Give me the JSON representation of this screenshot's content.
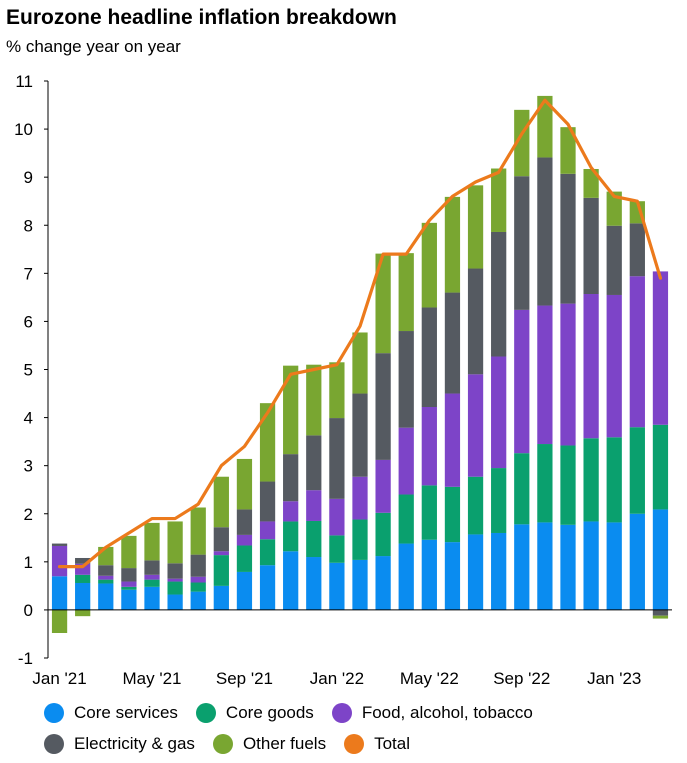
{
  "title": "Eurozone headline inflation breakdown",
  "subtitle": "% change year on year",
  "chart_data": {
    "type": "bar",
    "stacked": true,
    "title": "Eurozone headline inflation breakdown",
    "ylabel": "% change year on year",
    "ylim": [
      -1,
      11
    ],
    "yticks": [
      -1,
      0,
      1,
      2,
      3,
      4,
      5,
      6,
      7,
      8,
      9,
      10,
      11
    ],
    "x_tick_labels": [
      "Jan '21",
      "May '21",
      "Sep '21",
      "Jan '22",
      "May '22",
      "Sep '22",
      "Jan '23"
    ],
    "x_tick_index": [
      0,
      4,
      8,
      12,
      16,
      20,
      24
    ],
    "categories": [
      "Jan 2021",
      "Feb 2021",
      "Mar 2021",
      "Apr 2021",
      "May 2021",
      "Jun 2021",
      "Jul 2021",
      "Aug 2021",
      "Sep 2021",
      "Oct 2021",
      "Nov 2021",
      "Dec 2021",
      "Jan 2022",
      "Feb 2022",
      "Mar 2022",
      "Apr 2022",
      "May 2022",
      "Jun 2022",
      "Jul 2022",
      "Aug 2022",
      "Sep 2022",
      "Oct 2022",
      "Nov 2022",
      "Dec 2022",
      "Jan 2023",
      "Feb 2023",
      "Mar 2023"
    ],
    "series": [
      {
        "name": "Core services",
        "color": "#0a8cf0",
        "values": [
          0.7,
          0.56,
          0.55,
          0.42,
          0.48,
          0.32,
          0.38,
          0.5,
          0.79,
          0.93,
          1.22,
          1.1,
          0.98,
          1.04,
          1.12,
          1.38,
          1.46,
          1.41,
          1.57,
          1.6,
          1.78,
          1.82,
          1.77,
          1.84,
          1.82,
          2.0,
          2.09
        ]
      },
      {
        "name": "Core goods",
        "color": "#0aa06e",
        "values": [
          0,
          0.17,
          0.08,
          0.06,
          0.15,
          0.27,
          0.19,
          0.64,
          0.55,
          0.54,
          0.62,
          0.75,
          0.57,
          0.84,
          0.9,
          1.02,
          1.13,
          1.15,
          1.2,
          1.35,
          1.48,
          1.63,
          1.65,
          1.73,
          1.77,
          1.8,
          1.76
        ]
      },
      {
        "name": "Food, alcohol, tobacco",
        "color": "#7d44c8",
        "values": [
          0.63,
          0.23,
          0.08,
          0.11,
          0.1,
          0.06,
          0.12,
          0.08,
          0.22,
          0.37,
          0.42,
          0.64,
          0.76,
          0.89,
          1.1,
          1.39,
          1.63,
          1.94,
          2.13,
          2.32,
          2.98,
          2.88,
          2.95,
          3.0,
          2.96,
          3.14,
          3.19
        ]
      },
      {
        "name": "Electricity & gas",
        "color": "#555a61",
        "values": [
          0.05,
          0.12,
          0.22,
          0.28,
          0.3,
          0.32,
          0.46,
          0.5,
          0.53,
          0.83,
          0.98,
          1.14,
          1.68,
          1.73,
          2.22,
          2.01,
          2.07,
          2.1,
          2.2,
          2.59,
          2.78,
          3.08,
          2.7,
          2.0,
          1.44,
          1.1,
          -0.12
        ]
      },
      {
        "name": "Other fuels",
        "color": "#79a631",
        "values": [
          -0.48,
          -0.13,
          0.38,
          0.67,
          0.78,
          0.87,
          0.98,
          1.05,
          1.05,
          1.63,
          1.84,
          1.47,
          1.16,
          1.27,
          2.07,
          1.62,
          1.76,
          1.99,
          1.73,
          1.32,
          1.38,
          1.28,
          0.97,
          0.6,
          0.71,
          0.46,
          -0.06
        ]
      },
      {
        "name": "Total",
        "type": "line",
        "color": "#ec7a1c",
        "values": [
          0.9,
          0.9,
          1.3,
          1.6,
          1.9,
          1.9,
          2.2,
          3.0,
          3.4,
          4.1,
          4.9,
          5.0,
          5.1,
          5.9,
          7.4,
          7.4,
          8.1,
          8.6,
          8.9,
          9.1,
          9.9,
          10.6,
          10.1,
          9.2,
          8.6,
          8.5,
          6.9
        ]
      }
    ],
    "legend_position": "bottom",
    "grid": false
  },
  "legend": [
    {
      "label": "Core services",
      "color": "#0a8cf0"
    },
    {
      "label": "Core goods",
      "color": "#0aa06e"
    },
    {
      "label": "Food, alcohol, tobacco",
      "color": "#7d44c8"
    },
    {
      "label": "Electricity & gas",
      "color": "#555a61"
    },
    {
      "label": "Other fuels",
      "color": "#79a631"
    },
    {
      "label": "Total",
      "color": "#ec7a1c"
    }
  ]
}
